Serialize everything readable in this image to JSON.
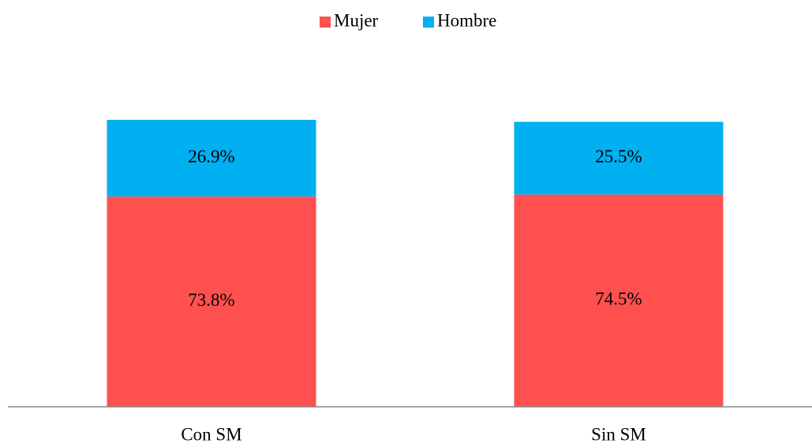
{
  "chart_data": {
    "type": "stacked_bar",
    "categories": [
      "Con SM",
      "Sin SM"
    ],
    "series": [
      {
        "name": "Mujer",
        "color": "#ff5050",
        "values": [
          73.8,
          74.5
        ],
        "value_labels": [
          "73.8%",
          "74.5%"
        ]
      },
      {
        "name": "Hombre",
        "color": "#00b0f0",
        "values": [
          26.9,
          25.5
        ],
        "value_labels": [
          "26.9%",
          "25.5%"
        ]
      }
    ],
    "legend": "top"
  }
}
